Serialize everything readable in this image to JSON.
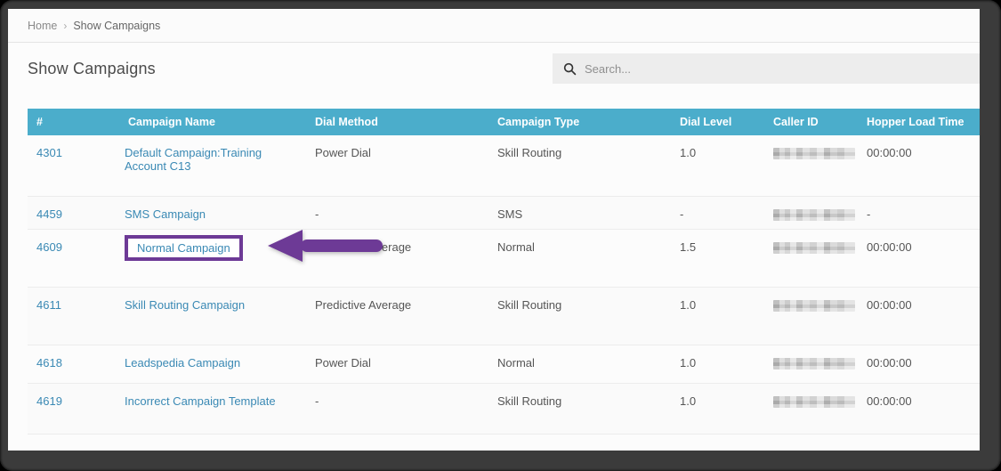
{
  "breadcrumb": {
    "home": "Home",
    "separator": "›",
    "current": "Show Campaigns"
  },
  "page": {
    "title": "Show Campaigns"
  },
  "search": {
    "placeholder": "Search...",
    "icon": "magnifier"
  },
  "table": {
    "columns": [
      "#",
      "Campaign Name",
      "Dial Method",
      "Campaign Type",
      "Dial Level",
      "Caller ID",
      "Hopper Load Time"
    ],
    "rows": [
      {
        "id": "4301",
        "name": "Default Campaign:Training Account C13",
        "dial_method": "Power Dial",
        "campaign_type": "Skill Routing",
        "dial_level": "1.0",
        "caller_id_redacted": true,
        "hopper_load_time": "00:00:00",
        "highlighted": false
      },
      {
        "id": "4459",
        "name": "SMS Campaign",
        "dial_method": "-",
        "campaign_type": "SMS",
        "dial_level": "-",
        "caller_id_redacted": true,
        "hopper_load_time": "-",
        "highlighted": false
      },
      {
        "id": "4609",
        "name": "Normal Campaign",
        "dial_method": "Predictive Average",
        "campaign_type": "Normal",
        "dial_level": "1.5",
        "caller_id_redacted": true,
        "hopper_load_time": "00:00:00",
        "highlighted": true
      },
      {
        "id": "4611",
        "name": "Skill Routing Campaign",
        "dial_method": "Predictive Average",
        "campaign_type": "Skill Routing",
        "dial_level": "1.0",
        "caller_id_redacted": true,
        "hopper_load_time": "00:00:00",
        "highlighted": false
      },
      {
        "id": "4618",
        "name": "Leadspedia Campaign",
        "dial_method": "Power Dial",
        "campaign_type": "Normal",
        "dial_level": "1.0",
        "caller_id_redacted": true,
        "hopper_load_time": "00:00:00",
        "highlighted": false
      },
      {
        "id": "4619",
        "name": "Incorrect Campaign Template",
        "dial_method": "-",
        "campaign_type": "Skill Routing",
        "dial_level": "1.0",
        "caller_id_redacted": true,
        "hopper_load_time": "00:00:00",
        "highlighted": false
      }
    ]
  },
  "annotation": {
    "shape": "left-arrow-and-box",
    "target": "Normal Campaign"
  },
  "colors": {
    "header_bg": "#4badcb",
    "link": "#3a89b4",
    "annotation": "#6d3a96",
    "frame": "#3b3b3b",
    "page_bg": "#fcfcfc"
  }
}
